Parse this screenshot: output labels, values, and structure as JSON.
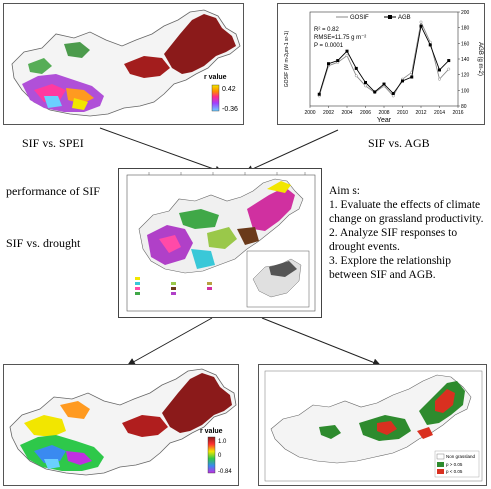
{
  "panels": {
    "top_left_map": {
      "legend_title": "r value",
      "legend_max": "0.42",
      "legend_min": "-0.36"
    },
    "top_right_chart": {
      "legend_gosif": "GOSIF",
      "legend_agb": "AGB",
      "stats_r2": "R² = 0.82",
      "stats_rmse": "RMSE=11.75 g m⁻²",
      "stats_p": "P = 0.0001",
      "xlabel": "Year",
      "ylabel_left": "GOSIF (W m-2μm-1 sr-1)",
      "ylabel_right": "AGB (g m-2)"
    },
    "bottom_left_map": {
      "legend_title": "r value",
      "legend_max": "1.0",
      "legend_zero": "0",
      "legend_min": "-0.84"
    },
    "bottom_right_map": {
      "legend_non_grassland": "Non grassland",
      "legend_p_gt": "p > 0.05",
      "legend_p_lt": "p < 0.05"
    }
  },
  "captions": {
    "sif_vs_spei": "SIF vs. SPEI",
    "sif_vs_agb": "SIF vs. AGB",
    "performance_of_sif": "performance of SIF",
    "sif_vs_drought": "SIF vs. drought"
  },
  "aims": {
    "heading": "Aim s:",
    "items": [
      "1. Evaluate the effects of climate change on grassland productivity.",
      "2. Analyze SIF responses to drought events.",
      "3. Explore the relationship between SIF and AGB."
    ]
  },
  "colors": {
    "map_outline": "#666666",
    "desert_red": "#8b1a1a",
    "positive_green": "#2e8b2e",
    "significant_red": "#d93020"
  },
  "chart_data": {
    "type": "line",
    "x": [
      2001,
      2002,
      2003,
      2004,
      2005,
      2006,
      2007,
      2008,
      2009,
      2010,
      2011,
      2012,
      2013,
      2014,
      2015
    ],
    "series": [
      {
        "name": "GOSIF",
        "values": [
          0.175,
          0.22,
          0.225,
          0.235,
          0.205,
          0.19,
          0.18,
          0.19,
          0.175,
          0.2,
          0.21,
          0.285,
          0.255,
          0.2,
          0.215
        ]
      },
      {
        "name": "AGB",
        "values": [
          95,
          134,
          138,
          150,
          128,
          110,
          98,
          108,
          96,
          112,
          117,
          182,
          158,
          126,
          138
        ]
      }
    ],
    "xlabel": "Year",
    "ylabel": "GOSIF (W m-2μm-1 sr-1)",
    "ylabel_right": "AGB (g m-2)",
    "xlim": [
      2000,
      2016
    ],
    "xticks": [
      2000,
      2002,
      2004,
      2006,
      2008,
      2010,
      2012,
      2014,
      2016
    ],
    "ylim_right": [
      80,
      200
    ],
    "yticks_right": [
      80,
      100,
      120,
      140,
      160,
      180,
      200
    ],
    "annotations": [
      "R² = 0.82",
      "RMSE=11.75 g m⁻²",
      "P = 0.0001"
    ],
    "legend": "top-center"
  }
}
